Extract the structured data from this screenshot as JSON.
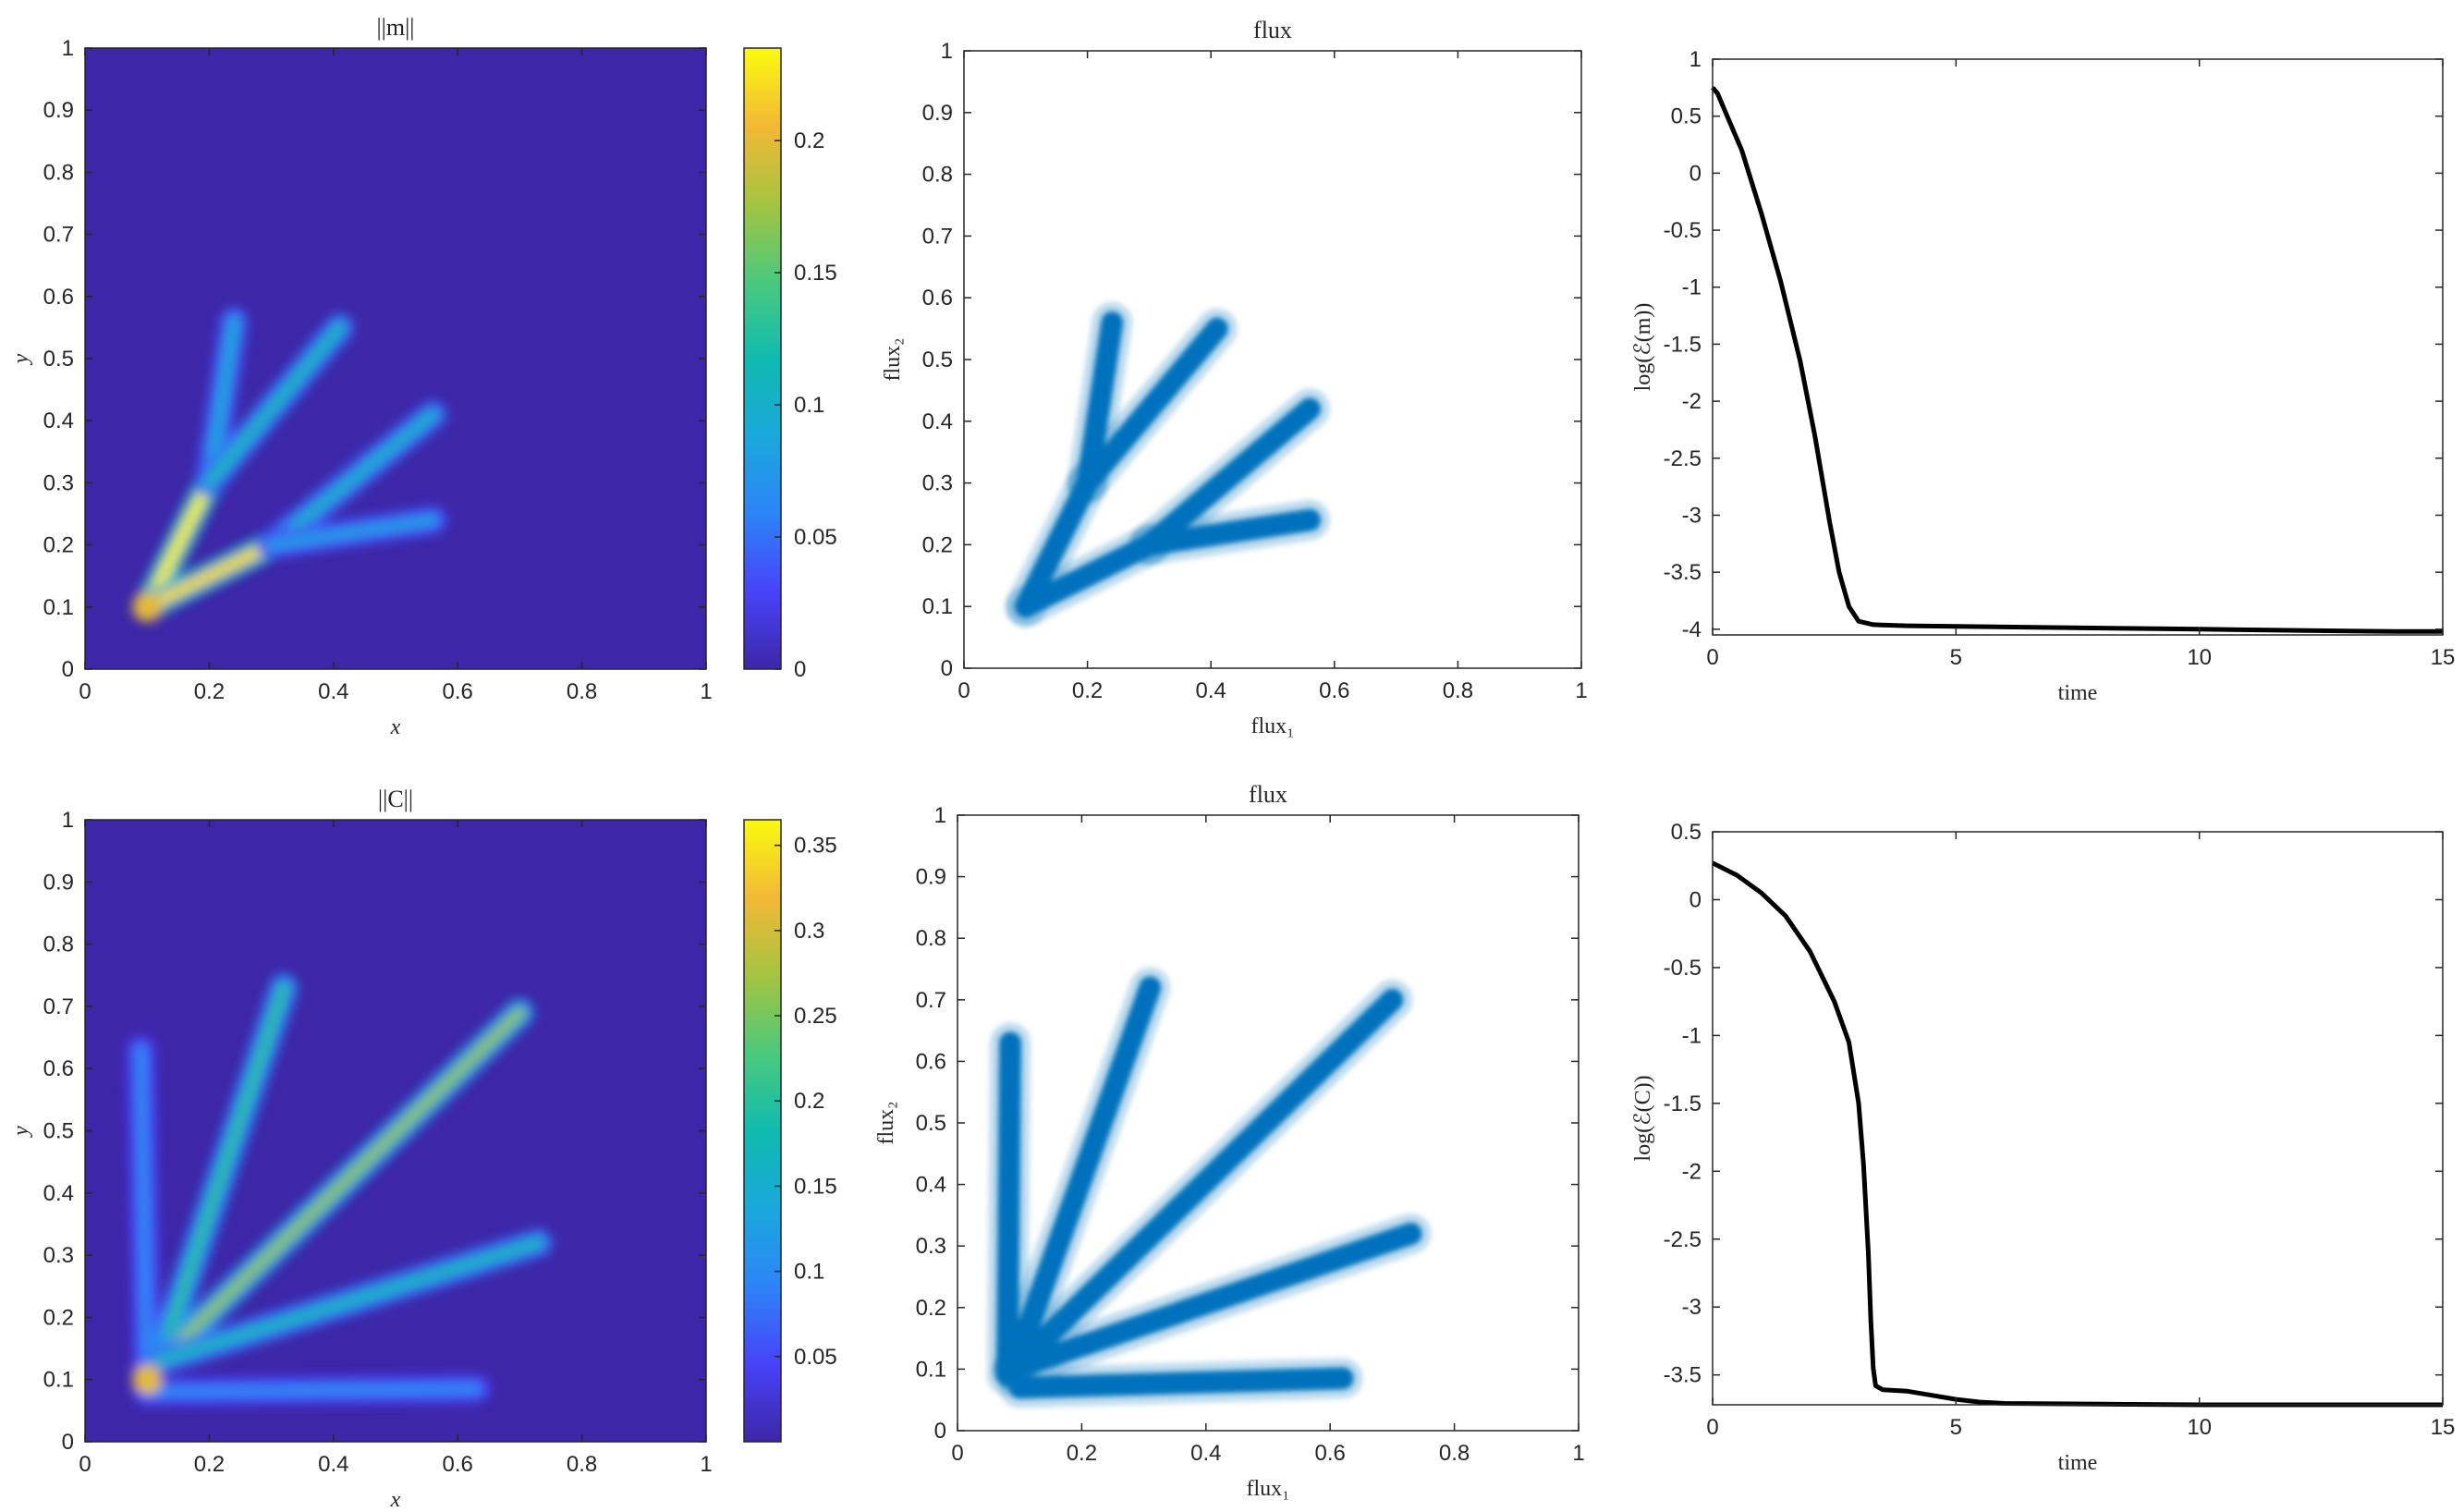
{
  "chart_data": [
    {
      "type": "heatmap",
      "title": "||m||",
      "xlabel": "x",
      "ylabel": "y",
      "xlim": [
        0,
        1
      ],
      "ylim": [
        0,
        1
      ],
      "x_ticks": [
        "0",
        "0.2",
        "0.4",
        "0.6",
        "0.8",
        "1"
      ],
      "y_ticks": [
        "0",
        "0.1",
        "0.2",
        "0.3",
        "0.4",
        "0.5",
        "0.6",
        "0.7",
        "0.8",
        "0.9",
        "1"
      ],
      "background_color": "#3d26a8",
      "colorbar": {
        "min": 0,
        "max": 0.235,
        "ticks": [
          "0",
          "0.05",
          "0.1",
          "0.15",
          "0.2"
        ]
      },
      "branches": [
        {
          "from": [
            0.1,
            0.1
          ],
          "to": [
            0.2,
            0.3
          ],
          "peak": 0.23
        },
        {
          "from": [
            0.2,
            0.3
          ],
          "to": [
            0.24,
            0.56
          ],
          "peak": 0.09
        },
        {
          "from": [
            0.2,
            0.3
          ],
          "to": [
            0.41,
            0.55
          ],
          "peak": 0.11
        },
        {
          "from": [
            0.1,
            0.1
          ],
          "to": [
            0.3,
            0.2
          ],
          "peak": 0.22
        },
        {
          "from": [
            0.3,
            0.2
          ],
          "to": [
            0.56,
            0.41
          ],
          "peak": 0.1
        },
        {
          "from": [
            0.3,
            0.2
          ],
          "to": [
            0.56,
            0.24
          ],
          "peak": 0.08
        }
      ]
    },
    {
      "type": "scatter",
      "title": "flux",
      "xlabel": "flux₁",
      "ylabel": "flux₂",
      "xlim": [
        0,
        1
      ],
      "ylim": [
        0,
        1
      ],
      "x_ticks": [
        "0",
        "0.2",
        "0.4",
        "0.6",
        "0.8",
        "1"
      ],
      "y_ticks": [
        "0",
        "0.1",
        "0.2",
        "0.3",
        "0.4",
        "0.5",
        "0.6",
        "0.7",
        "0.8",
        "0.9",
        "1"
      ],
      "color": "#0072bd",
      "branches": [
        {
          "from": [
            0.1,
            0.1
          ],
          "to": [
            0.2,
            0.3
          ]
        },
        {
          "from": [
            0.2,
            0.3
          ],
          "to": [
            0.24,
            0.56
          ]
        },
        {
          "from": [
            0.2,
            0.3
          ],
          "to": [
            0.41,
            0.55
          ]
        },
        {
          "from": [
            0.1,
            0.1
          ],
          "to": [
            0.3,
            0.2
          ]
        },
        {
          "from": [
            0.3,
            0.2
          ],
          "to": [
            0.56,
            0.42
          ]
        },
        {
          "from": [
            0.3,
            0.2
          ],
          "to": [
            0.56,
            0.24
          ]
        }
      ]
    },
    {
      "type": "line",
      "title": "",
      "xlabel": "time",
      "ylabel": "log(ℰ(m))",
      "xlim": [
        0,
        15
      ],
      "ylim": [
        -4.05,
        1
      ],
      "x_ticks": [
        "0",
        "5",
        "10",
        "15"
      ],
      "y_ticks": [
        "1",
        "0.5",
        "0",
        "-0.5",
        "-1",
        "-1.5",
        "-2",
        "-2.5",
        "-3",
        "-3.5",
        "-4"
      ],
      "color": "#000000",
      "x": [
        0,
        0.1,
        0.3,
        0.6,
        1.0,
        1.4,
        1.8,
        2.1,
        2.4,
        2.6,
        2.8,
        3.0,
        3.3,
        4,
        6,
        8,
        10,
        12,
        14,
        15
      ],
      "y": [
        0.75,
        0.7,
        0.5,
        0.2,
        -0.35,
        -0.95,
        -1.65,
        -2.3,
        -3.05,
        -3.5,
        -3.8,
        -3.93,
        -3.96,
        -3.97,
        -3.98,
        -3.99,
        -4.0,
        -4.01,
        -4.02,
        -4.02
      ]
    },
    {
      "type": "heatmap",
      "title": "||C||",
      "xlabel": "x",
      "ylabel": "y",
      "xlim": [
        0,
        1
      ],
      "ylim": [
        0,
        1
      ],
      "x_ticks": [
        "0",
        "0.2",
        "0.4",
        "0.6",
        "0.8",
        "1"
      ],
      "y_ticks": [
        "0",
        "0.1",
        "0.2",
        "0.3",
        "0.4",
        "0.5",
        "0.6",
        "0.7",
        "0.8",
        "0.9",
        "1"
      ],
      "background_color": "#3d26a8",
      "colorbar": {
        "min": 0,
        "max": 0.365,
        "ticks": [
          "0.05",
          "0.1",
          "0.15",
          "0.2",
          "0.25",
          "0.3",
          "0.35"
        ]
      },
      "branches": [
        {
          "from": [
            0.1,
            0.1
          ],
          "to": [
            0.09,
            0.63
          ],
          "peak": 0.1
        },
        {
          "from": [
            0.12,
            0.13
          ],
          "to": [
            0.32,
            0.73
          ],
          "peak": 0.2
        },
        {
          "from": [
            0.12,
            0.13
          ],
          "to": [
            0.7,
            0.69
          ],
          "peak": 0.26
        },
        {
          "from": [
            0.12,
            0.13
          ],
          "to": [
            0.73,
            0.32
          ],
          "peak": 0.17
        },
        {
          "from": [
            0.1,
            0.08
          ],
          "to": [
            0.63,
            0.085
          ],
          "peak": 0.1
        }
      ]
    },
    {
      "type": "scatter",
      "title": "flux",
      "xlabel": "flux₁",
      "ylabel": "flux₂",
      "xlim": [
        0,
        1
      ],
      "ylim": [
        0,
        1
      ],
      "x_ticks": [
        "0",
        "0.2",
        "0.4",
        "0.6",
        "0.8",
        "1"
      ],
      "y_ticks": [
        "0",
        "0.1",
        "0.2",
        "0.3",
        "0.4",
        "0.5",
        "0.6",
        "0.7",
        "0.8",
        "0.9",
        "1"
      ],
      "color": "#0072bd",
      "branches": [
        {
          "from": [
            0.08,
            0.09
          ],
          "to": [
            0.085,
            0.63
          ]
        },
        {
          "from": [
            0.09,
            0.1
          ],
          "to": [
            0.31,
            0.72
          ]
        },
        {
          "from": [
            0.09,
            0.1
          ],
          "to": [
            0.7,
            0.7
          ]
        },
        {
          "from": [
            0.09,
            0.1
          ],
          "to": [
            0.73,
            0.32
          ]
        },
        {
          "from": [
            0.1,
            0.07
          ],
          "to": [
            0.62,
            0.085
          ]
        }
      ]
    },
    {
      "type": "line",
      "title": "",
      "xlabel": "time",
      "ylabel": "log(ℰ(C))",
      "xlim": [
        0,
        15
      ],
      "ylim": [
        -3.72,
        0.5
      ],
      "x_ticks": [
        "0",
        "5",
        "10",
        "15"
      ],
      "y_ticks": [
        "0.5",
        "0",
        "-0.5",
        "-1",
        "-1.5",
        "-2",
        "-2.5",
        "-3",
        "-3.5"
      ],
      "color": "#000000",
      "x": [
        0,
        0.5,
        1.0,
        1.5,
        2.0,
        2.5,
        2.8,
        3.0,
        3.1,
        3.2,
        3.25,
        3.3,
        3.35,
        3.5,
        4.0,
        4.5,
        5.0,
        5.5,
        6.0,
        8,
        10,
        15
      ],
      "y": [
        0.27,
        0.18,
        0.05,
        -0.12,
        -0.38,
        -0.75,
        -1.05,
        -1.5,
        -1.95,
        -2.6,
        -3.1,
        -3.45,
        -3.58,
        -3.61,
        -3.62,
        -3.65,
        -3.68,
        -3.7,
        -3.71,
        -3.715,
        -3.72,
        -3.72
      ]
    }
  ]
}
